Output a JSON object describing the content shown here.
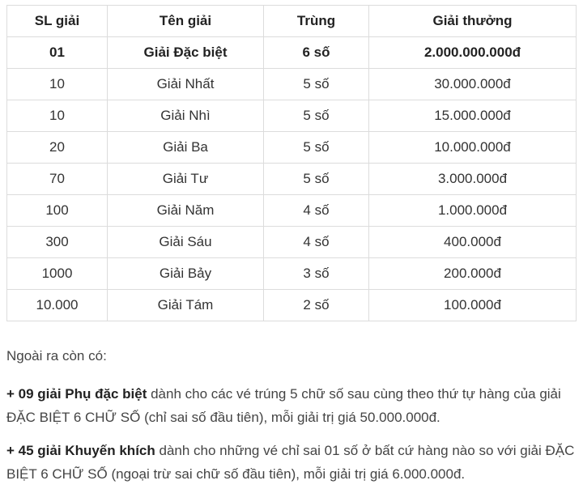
{
  "table": {
    "headers": [
      "SL giải",
      "Tên giải",
      "Trùng",
      "Giải thưởng"
    ],
    "rows": [
      [
        "01",
        "Giải Đặc biệt",
        "6 số",
        "2.000.000.000đ"
      ],
      [
        "10",
        "Giải Nhất",
        "5 số",
        "30.000.000đ"
      ],
      [
        "10",
        "Giải Nhì",
        "5 số",
        "15.000.000đ"
      ],
      [
        "20",
        "Giải Ba",
        "5 số",
        "10.000.000đ"
      ],
      [
        "70",
        "Giải Tư",
        "5 số",
        "3.000.000đ"
      ],
      [
        "100",
        "Giải Năm",
        "4 số",
        "1.000.000đ"
      ],
      [
        "300",
        "Giải Sáu",
        "4 số",
        "400.000đ"
      ],
      [
        "1000",
        "Giải Bảy",
        "3 số",
        "200.000đ"
      ],
      [
        "10.000",
        "Giải Tám",
        "2 số",
        "100.000đ"
      ]
    ]
  },
  "notes": {
    "intro": "Ngoài ra còn có:",
    "p1_bold": "+ 09 giải Phụ đặc biệt",
    "p1_text": " dành cho các vé trúng 5 chữ số sau cùng theo thứ tự hàng của giải ĐẶC BIỆT 6 CHỮ SỐ (chỉ sai số đầu tiên), mỗi giải trị giá 50.000.000đ.",
    "p2_bold": "+ 45 giải Khuyến khích",
    "p2_text": " dành cho những vé chỉ sai 01 số ở bất cứ hàng nào so với giải ĐẶC BIỆT 6 CHỮ SỐ (ngoại trừ sai chữ số đầu tiên), mỗi giải trị giá 6.000.000đ."
  }
}
